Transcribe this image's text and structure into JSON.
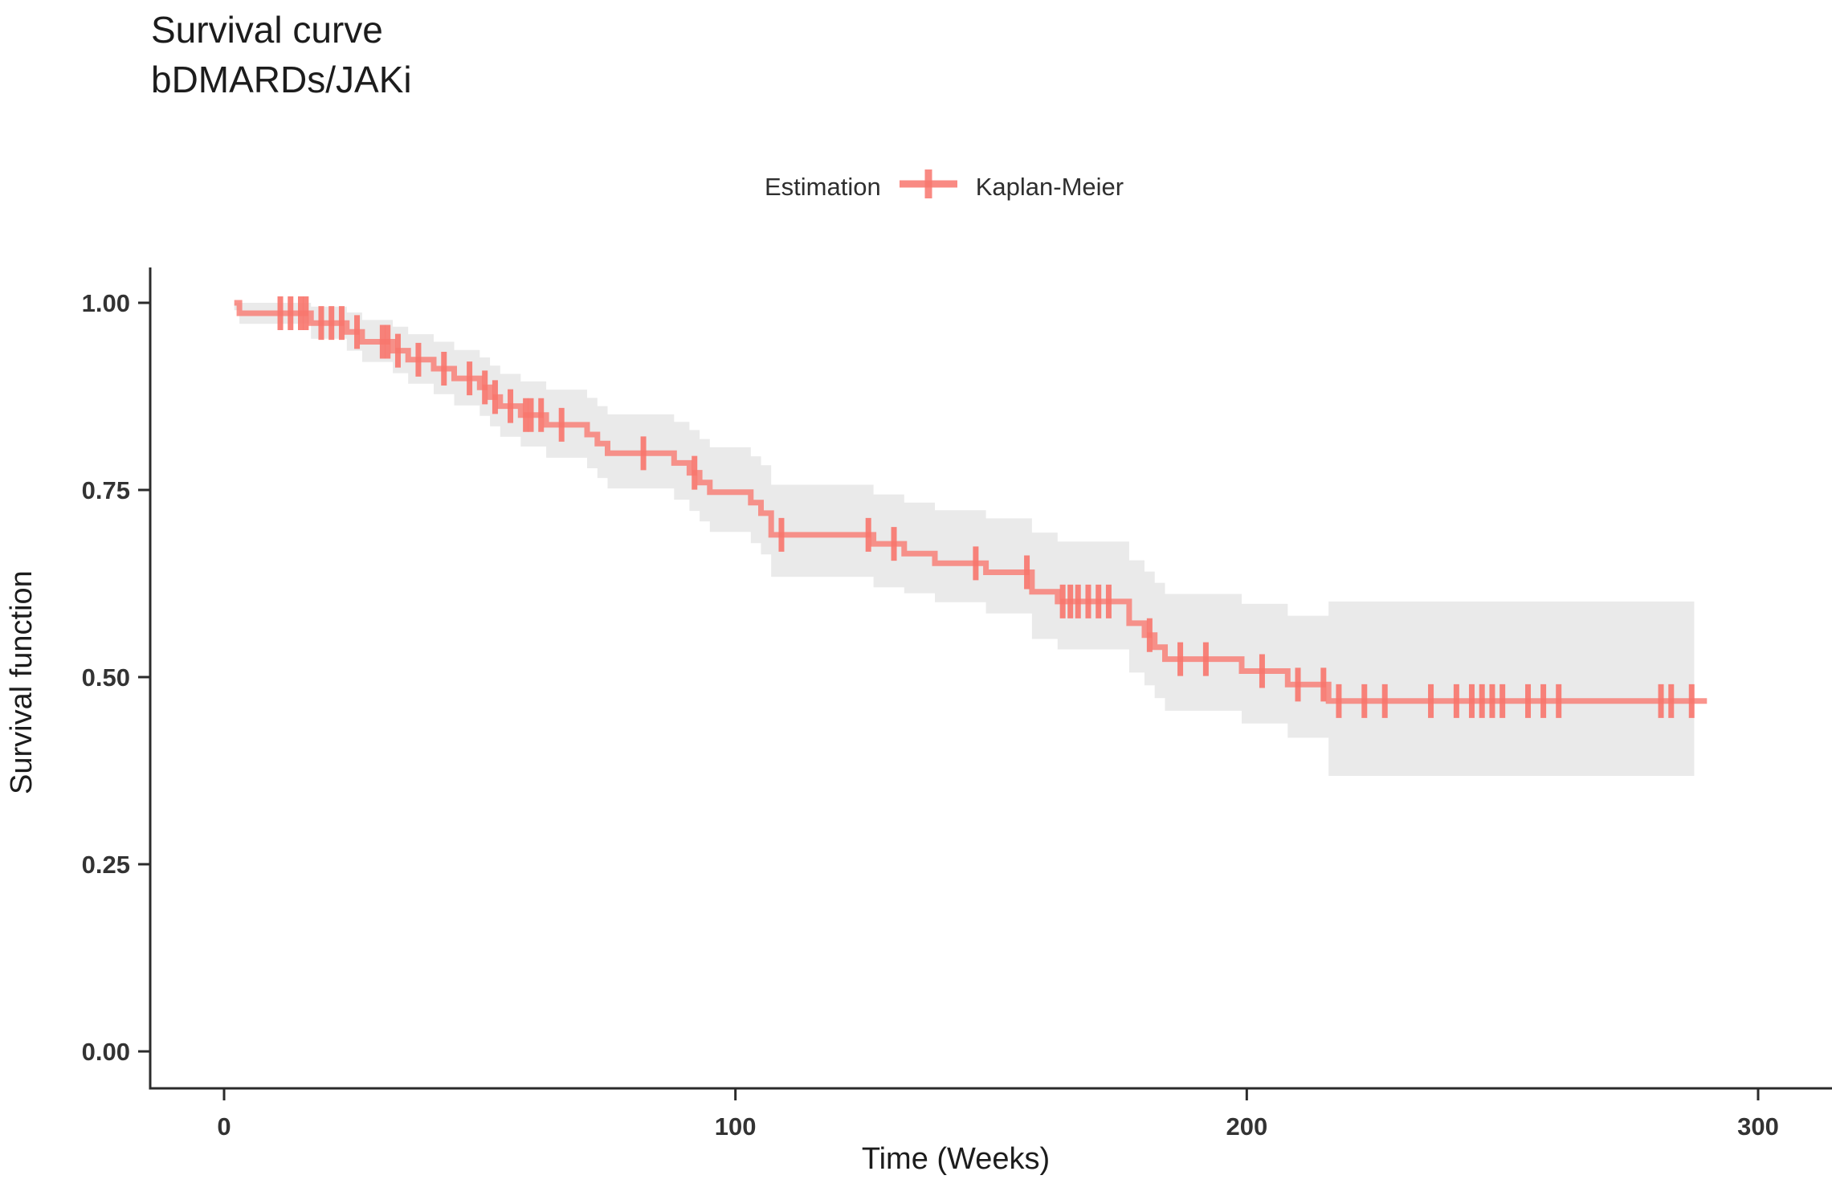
{
  "title": {
    "line1": "Survival curve",
    "line2": "bDMARDs/JAKi"
  },
  "legend": {
    "title": "Estimation",
    "key_label": "Kaplan-Meier",
    "key_color": "#F8766D"
  },
  "chart_data": {
    "type": "line",
    "variant": "kaplan-meier-step-with-ci",
    "title": "Survival curve bDMARDs/JAKi",
    "xlabel": "Time (Weeks)",
    "ylabel": "Survival function",
    "xlim": [
      0,
      314
    ],
    "ylim": [
      0,
      1.04
    ],
    "grid": false,
    "legend_position": "top",
    "x_ticks": [
      {
        "t": 0,
        "label": "0"
      },
      {
        "t": 100,
        "label": "100"
      },
      {
        "t": 200,
        "label": "200"
      },
      {
        "t": 300,
        "label": "300"
      }
    ],
    "y_ticks": [
      {
        "s": 0.0,
        "label": "0.00"
      },
      {
        "s": 0.25,
        "label": "0.25"
      },
      {
        "s": 0.5,
        "label": "0.50"
      },
      {
        "s": 0.75,
        "label": "0.75"
      },
      {
        "s": 1.0,
        "label": "1.00"
      }
    ],
    "series": [
      {
        "name": "Kaplan-Meier",
        "color": "#F8766D",
        "ci_color": "#EAEAEA",
        "steps": [
          [
            2,
            1.0
          ],
          [
            3,
            0.986
          ],
          [
            17,
            0.973
          ],
          [
            24,
            0.961
          ],
          [
            27,
            0.948
          ],
          [
            33,
            0.936
          ],
          [
            36,
            0.924
          ],
          [
            41,
            0.912
          ],
          [
            45,
            0.899
          ],
          [
            50,
            0.887
          ],
          [
            52,
            0.874
          ],
          [
            54,
            0.862
          ],
          [
            58,
            0.85
          ],
          [
            63,
            0.837
          ],
          [
            71,
            0.824
          ],
          [
            73,
            0.812
          ],
          [
            75,
            0.799
          ],
          [
            88,
            0.786
          ],
          [
            91,
            0.773
          ],
          [
            93,
            0.76
          ],
          [
            95,
            0.747
          ],
          [
            103,
            0.733
          ],
          [
            105,
            0.719
          ],
          [
            107,
            0.69
          ],
          [
            127,
            0.678
          ],
          [
            133,
            0.665
          ],
          [
            139,
            0.652
          ],
          [
            149,
            0.64
          ],
          [
            158,
            0.614
          ],
          [
            163,
            0.601
          ],
          [
            177,
            0.572
          ],
          [
            180,
            0.556
          ],
          [
            182,
            0.54
          ],
          [
            184,
            0.524
          ],
          [
            199,
            0.508
          ],
          [
            208,
            0.49
          ],
          [
            216,
            0.468
          ],
          [
            290,
            0.468
          ]
        ],
        "censor_times": [
          11,
          13,
          15,
          16,
          19,
          21,
          23,
          26,
          31,
          32,
          34,
          38,
          43,
          48,
          51,
          53,
          56,
          59,
          60,
          62,
          66,
          82,
          92,
          109,
          126,
          131,
          147,
          157,
          164,
          165.5,
          167,
          169,
          171,
          173,
          181,
          187,
          192,
          203,
          210,
          215,
          218,
          223,
          227,
          236,
          241,
          244,
          246,
          248,
          250,
          255,
          258,
          261,
          281,
          283,
          287
        ],
        "ci": [
          [
            2,
            1.0,
            0.99
          ],
          [
            3,
            1.0,
            0.972
          ],
          [
            17,
            0.995,
            0.952
          ],
          [
            24,
            0.987,
            0.936
          ],
          [
            27,
            0.977,
            0.921
          ],
          [
            33,
            0.968,
            0.906
          ],
          [
            36,
            0.958,
            0.892
          ],
          [
            41,
            0.948,
            0.878
          ],
          [
            45,
            0.937,
            0.863
          ],
          [
            50,
            0.927,
            0.849
          ],
          [
            52,
            0.916,
            0.835
          ],
          [
            54,
            0.905,
            0.821
          ],
          [
            58,
            0.895,
            0.808
          ],
          [
            63,
            0.884,
            0.793
          ],
          [
            71,
            0.873,
            0.779
          ],
          [
            73,
            0.862,
            0.766
          ],
          [
            75,
            0.851,
            0.752
          ],
          [
            88,
            0.841,
            0.737
          ],
          [
            91,
            0.83,
            0.722
          ],
          [
            93,
            0.818,
            0.708
          ],
          [
            95,
            0.807,
            0.694
          ],
          [
            103,
            0.795,
            0.679
          ],
          [
            105,
            0.783,
            0.664
          ],
          [
            107,
            0.757,
            0.634
          ],
          [
            127,
            0.744,
            0.62
          ],
          [
            133,
            0.733,
            0.612
          ],
          [
            139,
            0.723,
            0.6
          ],
          [
            149,
            0.712,
            0.585
          ],
          [
            158,
            0.693,
            0.551
          ],
          [
            163,
            0.681,
            0.537
          ],
          [
            177,
            0.656,
            0.506
          ],
          [
            180,
            0.641,
            0.489
          ],
          [
            182,
            0.626,
            0.472
          ],
          [
            184,
            0.611,
            0.455
          ],
          [
            199,
            0.598,
            0.438
          ],
          [
            208,
            0.582,
            0.419
          ],
          [
            216,
            0.601,
            0.368
          ],
          [
            287.5,
            0.601,
            0.366
          ]
        ]
      }
    ]
  }
}
